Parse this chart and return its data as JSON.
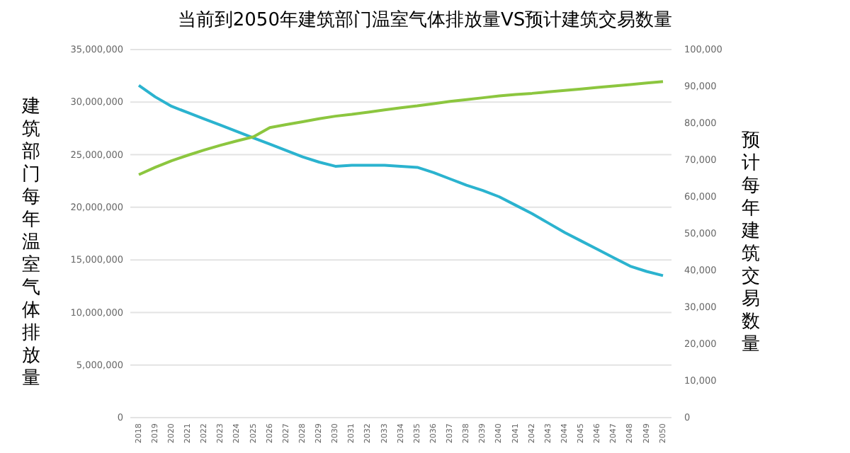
{
  "chart_data": {
    "type": "line",
    "title": "当前到2050年建筑部门温室气体排放量VS预计建筑交易数量",
    "ylabel": "建筑部门每年温室气体排放量",
    "y2label": "预计每年建筑交易数量",
    "categories": [
      "2018",
      "2019",
      "2020",
      "2021",
      "2022",
      "2023",
      "2024",
      "2025",
      "2026",
      "2027",
      "2028",
      "2029",
      "2030",
      "2031",
      "2032",
      "2033",
      "2034",
      "2035",
      "2036",
      "2037",
      "2038",
      "2039",
      "2040",
      "2041",
      "2042",
      "2043",
      "2044",
      "2045",
      "2046",
      "2047",
      "2048",
      "2049",
      "2050"
    ],
    "series": [
      {
        "color": "#2bb3cf",
        "values": [
          31600000,
          30500000,
          29600000,
          29000000,
          28400000,
          27800000,
          27200000,
          26600000,
          26000000,
          25400000,
          24800000,
          24300000,
          23900000,
          24000000,
          24000000,
          24000000,
          23900000,
          23800000,
          23300000,
          22700000,
          22100000,
          21600000,
          21000000,
          20200000,
          19400000,
          18500000,
          17600000,
          16800000,
          16000000,
          15200000,
          14400000,
          13900000,
          13500000
        ]
      },
      {
        "color": "#8cc63f",
        "axis": "y2",
        "values": [
          66000,
          68000,
          69800,
          71300,
          72700,
          74000,
          75200,
          76300,
          78800,
          79600,
          80400,
          81200,
          81900,
          82400,
          83000,
          83600,
          84200,
          84700,
          85300,
          85900,
          86400,
          86900,
          87400,
          87800,
          88100,
          88500,
          88900,
          89300,
          89700,
          90100,
          90500,
          90900,
          91300
        ]
      }
    ],
    "ylim": [
      0,
      35000000
    ],
    "yticks": [
      {
        "value": 0,
        "label": "0"
      },
      {
        "value": 5000000,
        "label": "5,000,000"
      },
      {
        "value": 10000000,
        "label": "10,000,000"
      },
      {
        "value": 15000000,
        "label": "15,000,000"
      },
      {
        "value": 20000000,
        "label": "20,000,000"
      },
      {
        "value": 25000000,
        "label": "25,000,000"
      },
      {
        "value": 30000000,
        "label": "30,000,000"
      },
      {
        "value": 35000000,
        "label": "35,000,000"
      }
    ],
    "y2lim": [
      0,
      100000
    ],
    "y2ticks": [
      {
        "value": 0,
        "label": "0"
      },
      {
        "value": 10000,
        "label": "10,000"
      },
      {
        "value": 20000,
        "label": "20,000"
      },
      {
        "value": 30000,
        "label": "30,000"
      },
      {
        "value": 40000,
        "label": "40,000"
      },
      {
        "value": 50000,
        "label": "50,000"
      },
      {
        "value": 60000,
        "label": "60,000"
      },
      {
        "value": 70000,
        "label": "70,000"
      },
      {
        "value": 80000,
        "label": "80,000"
      },
      {
        "value": 90000,
        "label": "90,000"
      },
      {
        "value": 100000,
        "label": "100,000"
      }
    ],
    "grid": "y",
    "marker": "none",
    "line_style": "solid"
  }
}
